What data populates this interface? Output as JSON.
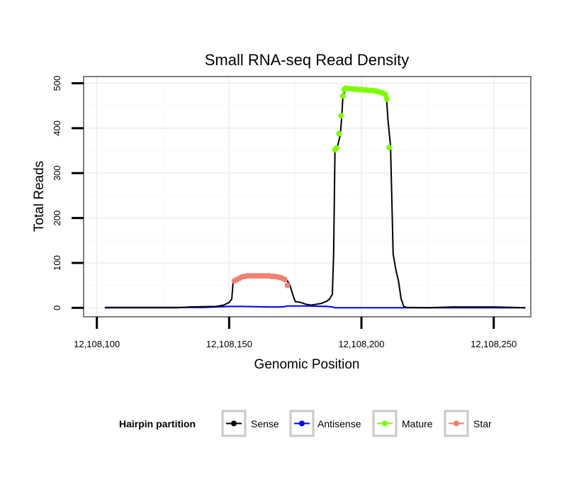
{
  "chart_data": {
    "type": "line",
    "title": "Small RNA-seq Read Density",
    "xlabel": "Genomic Position",
    "ylabel": "Total Reads",
    "xlim": [
      12108095,
      12108264
    ],
    "ylim": [
      -20,
      515
    ],
    "x_ticks": [
      12108100,
      12108150,
      12108200,
      12108250
    ],
    "x_tick_labels": [
      "12,108,100",
      "12,108,150",
      "12,108,200",
      "12,108,250"
    ],
    "y_ticks": [
      0,
      100,
      200,
      300,
      400,
      500
    ],
    "y_tick_labels": [
      "0",
      "100",
      "200",
      "300",
      "400",
      "500"
    ],
    "grid": true,
    "legend": {
      "title": "Hairpin partition",
      "position": "bottom",
      "entries": [
        "Sense",
        "Antisense",
        "Mature",
        "Star"
      ]
    },
    "series": [
      {
        "name": "Sense",
        "color": "#000000",
        "style": "line",
        "x": [
          12108103,
          12108120,
          12108130,
          12108135,
          12108145,
          12108148,
          12108150,
          12108151,
          12108151.5,
          12108152,
          12108153,
          12108155,
          12108157,
          12108160,
          12108165,
          12108168,
          12108170,
          12108171,
          12108172,
          12108173,
          12108174,
          12108175,
          12108177,
          12108179,
          12108181,
          12108183,
          12108185,
          12108187,
          12108188,
          12108189,
          12108189.5,
          12108190,
          12108191,
          12108192,
          12108192.5,
          12108193,
          12108194,
          12108196,
          12108200,
          12108204,
          12108207,
          12108208,
          12108209,
          12108209.5,
          12108210,
          12108211,
          12108212,
          12108213,
          12108214,
          12108215,
          12108216,
          12108217,
          12108225,
          12108235,
          12108250,
          12108262
        ],
        "y": [
          0,
          0,
          0,
          2,
          3,
          6,
          12,
          20,
          58,
          62,
          67,
          70,
          71,
          71,
          71,
          70,
          68,
          65,
          60,
          50,
          30,
          14,
          12,
          8,
          6,
          8,
          10,
          15,
          20,
          30,
          120,
          350,
          360,
          385,
          420,
          470,
          488,
          488,
          486,
          484,
          480,
          477,
          472,
          465,
          420,
          360,
          120,
          85,
          60,
          20,
          3,
          1,
          0,
          2,
          2,
          0
        ]
      },
      {
        "name": "Antisense",
        "color": "#0000ff",
        "style": "line",
        "x": [
          12108103,
          12108130,
          12108140,
          12108145,
          12108150,
          12108155,
          12108165,
          12108170,
          12108172,
          12108180,
          12108187,
          12108189,
          12108190,
          12108200,
          12108215,
          12108250,
          12108262
        ],
        "y": [
          1,
          1,
          1,
          2,
          3,
          3,
          2,
          2,
          4,
          4,
          3,
          2,
          0,
          0,
          0,
          0,
          0
        ]
      },
      {
        "name": "Mature",
        "color": "#7cfc00",
        "style": "points",
        "x": [
          12108190,
          12108190.6,
          12108191.5,
          12108192.3,
          12108193,
          12108193.5,
          12108194,
          12108195,
          12108196,
          12108197,
          12108198,
          12108199,
          12108200,
          12108201,
          12108202,
          12108203,
          12108204,
          12108205,
          12108206,
          12108207,
          12108208,
          12108209,
          12108209.6,
          12108210.5
        ],
        "y": [
          352,
          356,
          388,
          428,
          472,
          486,
          489,
          488,
          488,
          487,
          487,
          486,
          486,
          485,
          485,
          484,
          484,
          483,
          482,
          480,
          478,
          475,
          465,
          357
        ]
      },
      {
        "name": "Star",
        "color": "#f08070",
        "style": "points",
        "x": [
          12108152,
          12108153,
          12108154,
          12108155,
          12108156,
          12108157,
          12108158,
          12108159,
          12108160,
          12108161,
          12108162,
          12108163,
          12108164,
          12108165,
          12108166,
          12108167,
          12108168,
          12108169,
          12108170,
          12108171,
          12108172
        ],
        "y": [
          60,
          63,
          66,
          69,
          70,
          71,
          71,
          71,
          71,
          71,
          71,
          71,
          71,
          71,
          70,
          70,
          69,
          68,
          66,
          63,
          50
        ]
      }
    ]
  }
}
